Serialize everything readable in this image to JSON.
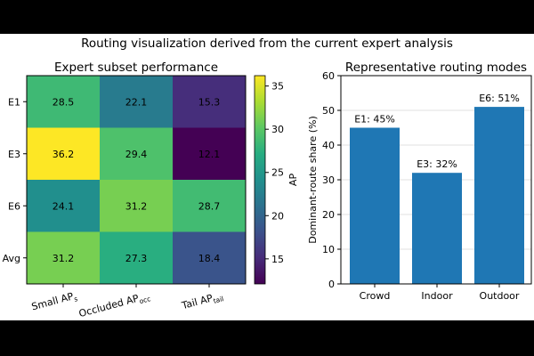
{
  "figure_title": "Routing visualization derived from the current expert analysis",
  "chart_data": [
    {
      "type": "heatmap",
      "title": "Expert subset performance",
      "rows": [
        "E1",
        "E3",
        "E6",
        "Avg"
      ],
      "columns": [
        {
          "main": "Small AP",
          "sub": "s"
        },
        {
          "main": "Occluded AP",
          "sub": "occ"
        },
        {
          "main": "Tail AP",
          "sub": "tail"
        }
      ],
      "values": [
        [
          28.5,
          22.1,
          15.3
        ],
        [
          36.2,
          29.4,
          12.1
        ],
        [
          24.1,
          31.2,
          28.7
        ],
        [
          31.2,
          27.3,
          18.4
        ]
      ],
      "value_labels": [
        [
          "28.5",
          "22.1",
          "15.3"
        ],
        [
          "36.2",
          "29.4",
          "12.1"
        ],
        [
          "24.1",
          "31.2",
          "28.7"
        ],
        [
          "31.2",
          "27.3",
          "18.4"
        ]
      ],
      "colorbar": {
        "label": "AP",
        "vmin": 12.1,
        "vmax": 36.2,
        "ticks": [
          "15",
          "20",
          "25",
          "30",
          "35"
        ],
        "colormap": "viridis"
      }
    },
    {
      "type": "bar",
      "title": "Representative routing modes",
      "categories": [
        "Crowd",
        "Indoor",
        "Outdoor"
      ],
      "values": [
        45,
        32,
        51
      ],
      "bar_labels": [
        "E1: 45%",
        "E3: 32%",
        "E6: 51%"
      ],
      "xlabel": "",
      "ylabel": "Dominant-route share (%)",
      "ylim": [
        0,
        60
      ],
      "yticks": [
        "0",
        "10",
        "20",
        "30",
        "40",
        "50",
        "60"
      ],
      "bar_color": "#1f77b4",
      "grid": "y"
    }
  ]
}
